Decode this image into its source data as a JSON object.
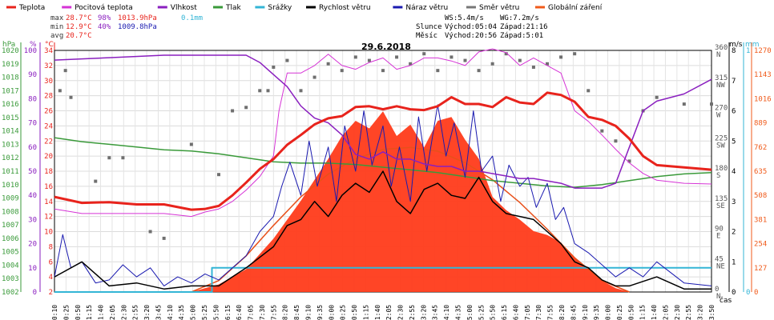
{
  "legend": [
    {
      "name": "Teplota",
      "color": "#e8231c"
    },
    {
      "name": "Pocitová teplota",
      "color": "#d633d6"
    },
    {
      "name": "Vlhkost",
      "color": "#8a1fbf"
    },
    {
      "name": "Tlak",
      "color": "#3a9a3a"
    },
    {
      "name": "Srážky",
      "color": "#33b5d6"
    },
    {
      "name": "Rychlost větru",
      "color": "#000000"
    },
    {
      "name": "Náraz větru",
      "color": "#1a1ab0"
    },
    {
      "name": "Směr větru",
      "color": "#777777"
    },
    {
      "name": "Globální záření",
      "color": "#f05a1a"
    }
  ],
  "stats": {
    "max": {
      "label": "max",
      "temp": "28.7°C",
      "hum": "98%",
      "press": "1013.9hPa",
      "rain": "0.1mm"
    },
    "min": {
      "label": "min",
      "temp": "12.9°C",
      "hum": "40%",
      "press": "1009.8hPa"
    },
    "avg": {
      "label": "avg",
      "temp": "20.7°C"
    }
  },
  "wind": {
    "ws": "WS:5.4m/s",
    "wg": "WG:7.2m/s"
  },
  "sun": {
    "label": "Slunce",
    "rise": "Východ:05:04",
    "set": "Západ:21:16"
  },
  "moon": {
    "label": "Měsíc",
    "rise": "Východ:20:56",
    "set": "Západ:5:01"
  },
  "date": "29.6.2018",
  "axis_headers": {
    "hpa": "hPa",
    "pct": "%",
    "c": "°C",
    "ms": "m/s",
    "mm": "mm",
    "sr": "W/m²"
  },
  "x_label": "čas",
  "chart_data": {
    "type": "line",
    "title": "29.6.2018",
    "x_ticks": [
      "00:10",
      "00:25",
      "00:50",
      "01:15",
      "01:40",
      "02:05",
      "02:30",
      "02:55",
      "03:20",
      "03:45",
      "04:10",
      "04:35",
      "05:00",
      "05:25",
      "05:50",
      "06:15",
      "06:40",
      "07:05",
      "07:30",
      "07:55",
      "08:20",
      "08:45",
      "09:10",
      "09:35",
      "10:00",
      "10:25",
      "10:50",
      "11:15",
      "11:40",
      "12:05",
      "12:30",
      "12:55",
      "13:20",
      "13:45",
      "14:10",
      "14:35",
      "15:00",
      "15:25",
      "15:50",
      "16:15",
      "16:40",
      "17:05",
      "17:30",
      "17:55",
      "18:20",
      "18:45",
      "19:10",
      "19:35",
      "20:00",
      "20:25",
      "20:50",
      "21:15",
      "21:40",
      "22:05",
      "22:30",
      "22:55",
      "23:20",
      "23:50"
    ],
    "axes": {
      "pressure_hpa": [
        "1020",
        "1019",
        "1018",
        "1017",
        "1016",
        "1015",
        "1014",
        "1013",
        "1012",
        "1011",
        "1010",
        "1009",
        "1008",
        "1007",
        "1006",
        "1005",
        "1004",
        "1003",
        "1002"
      ],
      "humidity_pct": [
        "100",
        "90",
        "80",
        "70",
        "60",
        "50",
        "40",
        "30",
        "20",
        "10",
        "0"
      ],
      "temperature_c": [
        "34",
        "32",
        "30",
        "28",
        "26",
        "24",
        "22",
        "20",
        "18",
        "16",
        "14",
        "12",
        "10",
        "8",
        "6",
        "4",
        "2"
      ],
      "wind_dir": [
        {
          "deg": "360",
          "dir": "N"
        },
        {
          "deg": "315",
          "dir": "NW"
        },
        {
          "deg": "270",
          "dir": "W"
        },
        {
          "deg": "225",
          "dir": "SW"
        },
        {
          "deg": "180",
          "dir": "S"
        },
        {
          "deg": "135",
          "dir": "SE"
        },
        {
          "deg": "90",
          "dir": "E"
        },
        {
          "deg": "45",
          "dir": "NE"
        },
        {
          "deg": "0",
          "dir": "N"
        }
      ],
      "wind_ms": [
        "8",
        "7",
        "6",
        "5",
        "4",
        "3",
        "2",
        "1",
        "0"
      ],
      "rain_mm": [
        "1",
        "0"
      ],
      "radiation_wm2": [
        "1270",
        "1143",
        "1016",
        "889",
        "762",
        "635",
        "508",
        "381",
        "254",
        "127",
        "0"
      ]
    },
    "series": [
      {
        "name": "Teplota",
        "axis": "temperature_c",
        "x": [
          0,
          1,
          2,
          3,
          4,
          5,
          5.5,
          6,
          6.5,
          7,
          7.5,
          8,
          8.5,
          9,
          9.5,
          10,
          10.5,
          11,
          11.5,
          12,
          12.5,
          13,
          13.5,
          14,
          14.5,
          15,
          15.5,
          16,
          16.5,
          17,
          17.5,
          18,
          18.5,
          19,
          19.5,
          20,
          20.5,
          21,
          21.5,
          22,
          23,
          24
        ],
        "y": [
          14.6,
          13.8,
          13.9,
          13.6,
          13.6,
          12.9,
          13.0,
          13.4,
          14.8,
          16.5,
          18.3,
          19.6,
          21.5,
          22.8,
          24.2,
          25.0,
          25.3,
          26.5,
          26.6,
          26.2,
          26.6,
          26.2,
          26.1,
          26.6,
          27.8,
          26.9,
          26.9,
          26.5,
          27.8,
          27.1,
          26.9,
          28.4,
          28.1,
          27.2,
          25.2,
          24.8,
          24.0,
          22.3,
          20.0,
          18.8,
          18.5,
          18.2
        ]
      },
      {
        "name": "Pocitová teplota",
        "axis": "temperature_c",
        "x": [
          0,
          1,
          2,
          3,
          4,
          5,
          5.5,
          6,
          6.5,
          7,
          7.5,
          8,
          8.2,
          8.5,
          9,
          9.5,
          10,
          10.5,
          11,
          11.5,
          12,
          12.5,
          13,
          13.5,
          14,
          14.5,
          15,
          15.5,
          16,
          16.5,
          17,
          17.5,
          18,
          18.5,
          19,
          19.5,
          20,
          20.5,
          21,
          21.5,
          22,
          23,
          24
        ],
        "y": [
          13.0,
          12.4,
          12.4,
          12.4,
          12.4,
          12.0,
          12.6,
          13.0,
          14.0,
          15.5,
          17.3,
          20.0,
          26.0,
          31.0,
          31.0,
          32.0,
          33.5,
          32.0,
          31.5,
          32.4,
          33.0,
          31.5,
          32.0,
          33.0,
          33.0,
          32.6,
          32.0,
          33.8,
          34.2,
          33.7,
          32.0,
          33.0,
          32.0,
          31.0,
          26.0,
          24.6,
          22.8,
          20.9,
          19.1,
          17.7,
          16.8,
          16.4,
          16.3
        ]
      },
      {
        "name": "Vlhkost",
        "axis": "humidity_pct",
        "x": [
          0,
          2,
          4,
          6,
          7,
          7.5,
          8,
          8.5,
          9,
          9.5,
          10,
          10.5,
          11,
          11.5,
          12,
          12.5,
          13,
          13.5,
          14,
          14.5,
          15,
          15.5,
          16,
          16.5,
          17,
          17.5,
          18,
          18.5,
          19,
          19.5,
          20,
          20.5,
          21,
          21.5,
          22,
          23,
          24
        ],
        "y": [
          96,
          97,
          98,
          98,
          98,
          95,
          90,
          85,
          77,
          72,
          70,
          65,
          57,
          55,
          58,
          55,
          55,
          53,
          52,
          52,
          50,
          50,
          49,
          48,
          47,
          47,
          46,
          45,
          43,
          43,
          43,
          45,
          60,
          75,
          79,
          82,
          88
        ]
      },
      {
        "name": "Tlak",
        "axis": "pressure_hpa",
        "x": [
          0,
          1,
          2,
          3,
          4,
          5,
          6,
          7,
          8,
          9,
          10,
          11,
          12,
          13,
          14,
          15,
          16,
          17,
          18,
          19,
          20,
          21,
          22,
          23,
          24
        ],
        "y": [
          1013.5,
          1013.2,
          1013.0,
          1012.8,
          1012.6,
          1012.5,
          1012.3,
          1012.0,
          1011.7,
          1011.6,
          1011.6,
          1011.5,
          1011.3,
          1011.1,
          1010.9,
          1010.6,
          1010.3,
          1010.1,
          1009.9,
          1009.8,
          1010.0,
          1010.3,
          1010.6,
          1010.8,
          1010.9
        ]
      },
      {
        "name": "Srážky",
        "axis": "rain_mm",
        "x": [
          0,
          5.75,
          5.75,
          21.1,
          21.1,
          24
        ],
        "y": [
          0,
          0,
          0.1,
          0.1,
          0.1,
          0.1
        ]
      },
      {
        "name": "Rychlost větru",
        "axis": "wind_ms",
        "x": [
          0,
          1,
          2,
          3,
          4,
          5,
          6,
          7,
          8,
          8.5,
          9,
          9.5,
          10,
          10.5,
          11,
          11.5,
          12,
          12.5,
          13,
          13.5,
          14,
          14.5,
          15,
          15.5,
          16,
          16.5,
          17,
          17.5,
          18,
          18.5,
          19,
          19.5,
          20,
          20.5,
          21,
          22,
          23,
          24
        ],
        "y": [
          0.5,
          1.0,
          0.2,
          0.3,
          0.1,
          0.2,
          0.2,
          0.8,
          1.5,
          2.2,
          2.4,
          3.0,
          2.5,
          3.2,
          3.6,
          3.3,
          4.0,
          3.0,
          2.6,
          3.4,
          3.6,
          3.2,
          3.1,
          3.8,
          3.0,
          2.6,
          2.5,
          2.4,
          2.0,
          1.6,
          1.0,
          0.8,
          0.4,
          0.2,
          0.2,
          0.5,
          0.1,
          0.1
        ]
      },
      {
        "name": "Náraz větru",
        "axis": "wind_ms",
        "x": [
          0,
          0.3,
          0.6,
          1,
          1.5,
          2,
          2.5,
          3,
          3.5,
          4,
          4.5,
          5,
          5.5,
          6,
          6.5,
          7,
          7.5,
          8,
          8.3,
          8.6,
          9,
          9.3,
          9.6,
          10,
          10.3,
          10.6,
          11,
          11.3,
          11.6,
          12,
          12.3,
          12.6,
          13,
          13.3,
          13.6,
          14,
          14.3,
          14.6,
          15,
          15.3,
          15.6,
          16,
          16.3,
          16.6,
          17,
          17.3,
          17.6,
          18,
          18.3,
          18.6,
          19,
          19.5,
          20,
          20.5,
          21,
          21.5,
          22,
          23,
          24
        ],
        "y": [
          0.5,
          1.9,
          0.8,
          1.0,
          0.3,
          0.4,
          0.9,
          0.5,
          0.8,
          0.2,
          0.5,
          0.3,
          0.6,
          0.4,
          0.8,
          1.2,
          2.0,
          2.5,
          3.5,
          4.3,
          3.2,
          5.0,
          3.5,
          4.8,
          3.0,
          5.5,
          4.0,
          6.0,
          4.2,
          5.5,
          3.5,
          4.8,
          3.0,
          5.8,
          4.0,
          6.2,
          4.5,
          5.6,
          3.8,
          6.0,
          4.0,
          4.5,
          3.0,
          4.2,
          3.5,
          3.8,
          2.8,
          3.6,
          2.4,
          2.8,
          1.6,
          1.3,
          0.9,
          0.5,
          0.8,
          0.5,
          1.0,
          0.3,
          0.2
        ]
      },
      {
        "name": "Globální záření",
        "axis": "radiation_wm2",
        "x": [
          5,
          6,
          7,
          8,
          9,
          10,
          10.5,
          11,
          11.5,
          12,
          12.5,
          13,
          13.5,
          14,
          14.5,
          15,
          15.5,
          16,
          16.5,
          17,
          17.5,
          18,
          18.5,
          19,
          19.5,
          20,
          20.5,
          21
        ],
        "y": [
          0,
          40,
          120,
          280,
          480,
          700,
          820,
          900,
          860,
          950,
          820,
          880,
          760,
          900,
          920,
          800,
          700,
          500,
          430,
          380,
          320,
          300,
          260,
          180,
          120,
          60,
          20,
          0
        ]
      },
      {
        "name": "Globální záření (teoretické)",
        "axis": "radiation_wm2",
        "x": [
          5,
          6,
          7,
          8,
          9,
          10,
          11,
          12,
          13,
          14,
          15,
          16,
          17,
          18,
          19,
          20,
          21
        ],
        "y": [
          0,
          60,
          190,
          350,
          500,
          620,
          700,
          750,
          760,
          740,
          680,
          590,
          470,
          330,
          180,
          60,
          0
        ]
      }
    ],
    "wind_direction_points": {
      "axis": "wind_dir",
      "x": [
        0.2,
        0.4,
        0.6,
        1.5,
        2,
        2.5,
        3.5,
        4,
        5,
        6,
        6.5,
        7,
        7.5,
        7.8,
        8,
        8.5,
        9,
        9.5,
        10,
        10.5,
        11,
        11.5,
        12,
        12.5,
        13,
        13.5,
        14,
        14.5,
        15,
        15.5,
        16,
        16.5,
        17,
        17.5,
        18,
        18.5,
        19,
        19.5,
        20,
        20.5,
        21,
        21.5,
        22,
        23,
        24
      ],
      "y": [
        300,
        330,
        290,
        165,
        200,
        200,
        90,
        80,
        220,
        175,
        270,
        275,
        300,
        300,
        335,
        345,
        300,
        320,
        340,
        330,
        350,
        345,
        330,
        350,
        340,
        355,
        330,
        350,
        345,
        330,
        340,
        355,
        345,
        335,
        340,
        350,
        355,
        300,
        240,
        225,
        195,
        270,
        290,
        280,
        280
      ]
    }
  }
}
